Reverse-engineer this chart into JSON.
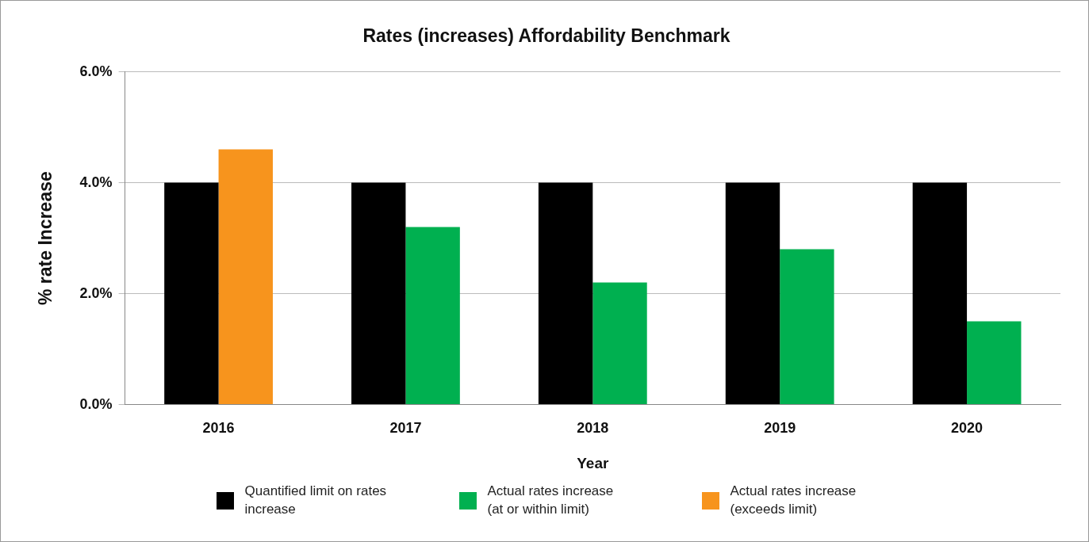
{
  "chart_data": {
    "type": "bar",
    "title": "Rates (increases) Affordability Benchmark",
    "xlabel": "Year",
    "ylabel": "% rate Increase",
    "categories": [
      "2016",
      "2017",
      "2018",
      "2019",
      "2020"
    ],
    "series": [
      {
        "name": "Quantified limit on rates increase",
        "color": "#000000",
        "values": [
          4.0,
          4.0,
          4.0,
          4.0,
          4.0
        ]
      },
      {
        "name": "Actual rates increase (at or within limit)",
        "color": "#00b050",
        "values": [
          null,
          3.2,
          2.2,
          2.8,
          1.5
        ]
      },
      {
        "name": "Actual rates increase (exceeds limit)",
        "color": "#f7941d",
        "values": [
          4.6,
          null,
          null,
          null,
          null
        ]
      }
    ],
    "ylim": [
      0,
      6
    ],
    "yticks": [
      {
        "value": 0,
        "label": "0.0%"
      },
      {
        "value": 2,
        "label": "2.0%"
      },
      {
        "value": 4,
        "label": "4.0%"
      },
      {
        "value": 6,
        "label": "6.0%"
      }
    ],
    "grid": "y",
    "legend": "bottom"
  }
}
